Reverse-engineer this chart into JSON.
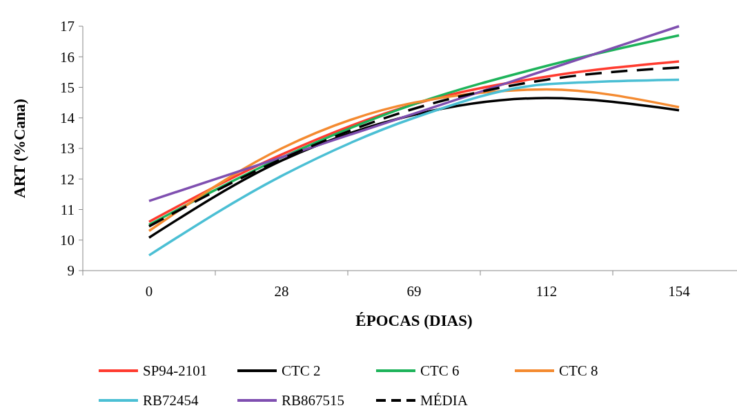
{
  "chart_data": {
    "type": "line",
    "xlabel": "ÉPOCAS (DIAS)",
    "ylabel": "ART (%Cana)",
    "categories": [
      "0",
      "28",
      "69",
      "112",
      "154"
    ],
    "ylim": [
      9,
      17
    ],
    "yticks": [
      9,
      10,
      11,
      12,
      13,
      14,
      15,
      16,
      17
    ],
    "grid": false,
    "legend": "bottom",
    "marker": "none",
    "series": [
      {
        "name": "SP94-2101",
        "color": "#ff3b2f",
        "values": [
          10.6,
          12.8,
          14.45,
          15.35,
          15.85
        ]
      },
      {
        "name": "CTC 2",
        "color": "#000000",
        "values": [
          10.08,
          12.6,
          14.1,
          14.65,
          14.25
        ]
      },
      {
        "name": "CTC 6",
        "color": "#1db35a",
        "values": [
          10.5,
          12.7,
          14.45,
          15.7,
          16.7
        ]
      },
      {
        "name": "CTC 8",
        "color": "#f48a30",
        "values": [
          10.3,
          13.0,
          14.5,
          14.93,
          14.35
        ]
      },
      {
        "name": "RB72454",
        "color": "#4bbfd4",
        "values": [
          9.5,
          12.1,
          14.0,
          15.1,
          15.25
        ]
      },
      {
        "name": "RB867515",
        "color": "#7f4fb0",
        "values": [
          11.28,
          12.71,
          14.14,
          15.57,
          17.0
        ]
      },
      {
        "name": "MÉDIA",
        "color": "#000000",
        "line_style": "dashed",
        "values": [
          10.45,
          12.65,
          14.3,
          15.25,
          15.65
        ]
      }
    ]
  }
}
